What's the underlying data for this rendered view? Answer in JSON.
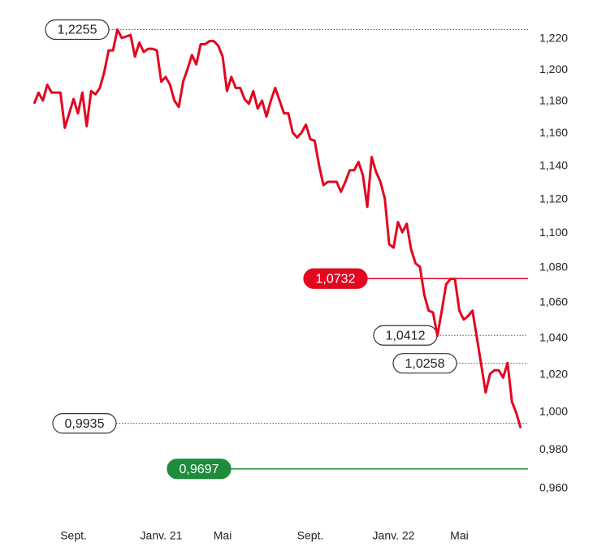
{
  "chart_data": {
    "type": "line",
    "log_scale": true,
    "categories": [
      null,
      null,
      null,
      null,
      null,
      null,
      null,
      null,
      null,
      "Sept.",
      null,
      null,
      null,
      null,
      null,
      null,
      null,
      null,
      null,
      null,
      null,
      null,
      null,
      null,
      null,
      null,
      null,
      null,
      null,
      "Janv. 21",
      null,
      null,
      null,
      null,
      null,
      null,
      null,
      null,
      null,
      null,
      null,
      null,
      null,
      "Mai",
      null,
      null,
      null,
      null,
      null,
      null,
      null,
      null,
      null,
      null,
      null,
      null,
      null,
      null,
      null,
      null,
      null,
      null,
      null,
      "Sept.",
      null,
      null,
      null,
      null,
      null,
      null,
      null,
      null,
      null,
      null,
      null,
      null,
      null,
      null,
      null,
      null,
      null,
      null,
      "Janv. 22",
      null,
      null,
      null,
      null,
      null,
      null,
      null,
      null,
      null,
      null,
      null,
      null,
      null,
      null,
      "Mai",
      null,
      null,
      null,
      null,
      null,
      null,
      null,
      null,
      null,
      null,
      null,
      null,
      null,
      null
    ],
    "series": [
      {
        "color": "#e3061f",
        "values": [
          1.178,
          1.185,
          1.18,
          1.19,
          1.185,
          1.185,
          1.185,
          1.163,
          1.172,
          1.181,
          1.172,
          1.185,
          1.164,
          1.186,
          1.184,
          1.188,
          1.198,
          1.212,
          1.212,
          1.2255,
          1.22,
          1.221,
          1.222,
          1.208,
          1.217,
          1.211,
          1.213,
          1.213,
          1.212,
          1.192,
          1.195,
          1.19,
          1.18,
          1.176,
          1.192,
          1.2,
          1.209,
          1.203,
          1.216,
          1.216,
          1.218,
          1.218,
          1.215,
          1.208,
          1.186,
          1.195,
          1.188,
          1.188,
          1.181,
          1.178,
          1.186,
          1.175,
          1.18,
          1.17,
          1.18,
          1.188,
          1.18,
          1.172,
          1.172,
          1.16,
          1.157,
          1.16,
          1.165,
          1.156,
          1.155,
          1.14,
          1.128,
          1.13,
          1.13,
          1.13,
          1.124,
          1.13,
          1.137,
          1.137,
          1.142,
          1.134,
          1.115,
          1.145,
          1.136,
          1.13,
          1.12,
          1.093,
          1.091,
          1.106,
          1.1,
          1.105,
          1.09,
          1.082,
          1.08,
          1.064,
          1.055,
          1.054,
          1.041,
          1.055,
          1.07,
          1.073,
          1.073,
          1.055,
          1.05,
          1.052,
          1.055,
          1.04,
          1.025,
          1.01,
          1.02,
          1.022,
          1.022,
          1.018,
          1.026,
          1.005,
          0.999,
          0.991
        ]
      }
    ],
    "ylim": [
      0.955,
      1.23
    ],
    "yticks": [
      {
        "value": 1.22,
        "label": "1,220"
      },
      {
        "value": 1.2,
        "label": "1,200"
      },
      {
        "value": 1.18,
        "label": "1,180"
      },
      {
        "value": 1.16,
        "label": "1,160"
      },
      {
        "value": 1.14,
        "label": "1,140"
      },
      {
        "value": 1.12,
        "label": "1,120"
      },
      {
        "value": 1.1,
        "label": "1,100"
      },
      {
        "value": 1.08,
        "label": "1,080"
      },
      {
        "value": 1.06,
        "label": "1,060"
      },
      {
        "value": 1.04,
        "label": "1,040"
      },
      {
        "value": 1.02,
        "label": "1,020"
      },
      {
        "value": 1.0,
        "label": "1,000"
      },
      {
        "value": 0.98,
        "label": "0,980"
      },
      {
        "value": 0.96,
        "label": "0,960"
      }
    ],
    "annotations": [
      {
        "value": 1.2255,
        "label": "1,2255",
        "line": "dotted"
      },
      {
        "value": 1.0732,
        "label": "1,0732",
        "line": "solid",
        "color": "#e3061f"
      },
      {
        "value": 1.0412,
        "label": "1,0412",
        "line": "dotted"
      },
      {
        "value": 1.0258,
        "label": "1,0258",
        "line": "dotted"
      },
      {
        "value": 0.9935,
        "label": "0,9935",
        "line": "dotted"
      },
      {
        "value": 0.9697,
        "label": "0,9697",
        "line": "solid",
        "color": "#1e8c3a"
      }
    ]
  }
}
